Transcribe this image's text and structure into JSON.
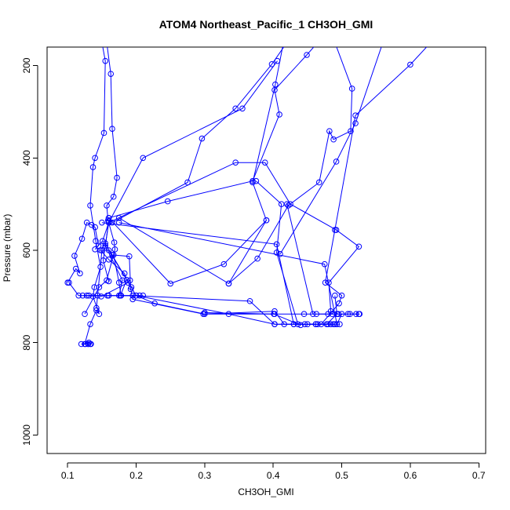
{
  "chart_data": {
    "type": "line",
    "title": "ATOM4 Northeast_Pacific_1 CH3OH_GMI",
    "xlabel": "CH3OH_GMI",
    "ylabel": "Pressure (mbar)",
    "xlim": [
      0.07,
      0.71
    ],
    "ylim": [
      1040,
      160
    ],
    "y_reversed": true,
    "xticks": [
      0.1,
      0.2,
      0.3,
      0.4,
      0.5,
      0.6,
      0.7
    ],
    "xtick_labels": [
      "0.1",
      "0.2",
      "0.3",
      "0.4",
      "0.5",
      "0.6",
      "0.7"
    ],
    "yticks": [
      200,
      400,
      600,
      800,
      1000
    ],
    "ytick_labels": [
      "200",
      "400",
      "600",
      "800",
      "1000"
    ],
    "grid": false,
    "legend": "none",
    "color": "#0000ff",
    "series": [
      {
        "values": [
          {
            "x": 0.1,
            "y": 670
          },
          {
            "x": 0.112,
            "y": 640
          },
          {
            "x": 0.118,
            "y": 650
          },
          {
            "x": 0.11,
            "y": 612
          },
          {
            "x": 0.121,
            "y": 575
          },
          {
            "x": 0.128,
            "y": 540
          },
          {
            "x": 0.135,
            "y": 545
          },
          {
            "x": 0.14,
            "y": 550
          },
          {
            "x": 0.145,
            "y": 590
          },
          {
            "x": 0.14,
            "y": 598
          },
          {
            "x": 0.151,
            "y": 580
          },
          {
            "x": 0.16,
            "y": 540
          },
          {
            "x": 0.21,
            "y": 400
          },
          {
            "x": 0.355,
            "y": 293
          },
          {
            "x": 0.406,
            "y": 190
          }
        ]
      },
      {
        "values": [
          {
            "x": 0.16,
            "y": 530
          },
          {
            "x": 0.246,
            "y": 494
          },
          {
            "x": 0.37,
            "y": 450
          },
          {
            "x": 0.409,
            "y": 306
          },
          {
            "x": 0.402,
            "y": 253
          },
          {
            "x": 0.449,
            "y": 177
          },
          {
            "x": 0.465,
            "y": 150
          }
        ]
      },
      {
        "values": [
          {
            "x": 0.125,
            "y": 738
          },
          {
            "x": 0.146,
            "y": 680
          },
          {
            "x": 0.157,
            "y": 665
          },
          {
            "x": 0.169,
            "y": 598
          },
          {
            "x": 0.168,
            "y": 583
          },
          {
            "x": 0.159,
            "y": 535
          },
          {
            "x": 0.157,
            "y": 503
          },
          {
            "x": 0.167,
            "y": 484
          },
          {
            "x": 0.172,
            "y": 443
          },
          {
            "x": 0.165,
            "y": 337
          },
          {
            "x": 0.163,
            "y": 218
          },
          {
            "x": 0.157,
            "y": 150
          }
        ]
      },
      {
        "values": [
          {
            "x": 0.125,
            "y": 803
          },
          {
            "x": 0.133,
            "y": 760
          },
          {
            "x": 0.142,
            "y": 730
          },
          {
            "x": 0.146,
            "y": 738
          },
          {
            "x": 0.137,
            "y": 700
          },
          {
            "x": 0.139,
            "y": 680
          },
          {
            "x": 0.148,
            "y": 636
          },
          {
            "x": 0.141,
            "y": 580
          },
          {
            "x": 0.133,
            "y": 503
          },
          {
            "x": 0.137,
            "y": 420
          },
          {
            "x": 0.14,
            "y": 400
          },
          {
            "x": 0.153,
            "y": 346
          },
          {
            "x": 0.155,
            "y": 190
          },
          {
            "x": 0.15,
            "y": 150
          }
        ]
      },
      {
        "values": [
          {
            "x": 0.122,
            "y": 698
          },
          {
            "x": 0.2,
            "y": 698
          },
          {
            "x": 0.227,
            "y": 715
          },
          {
            "x": 0.3,
            "y": 738
          },
          {
            "x": 0.402,
            "y": 738
          },
          {
            "x": 0.445,
            "y": 738
          },
          {
            "x": 0.486,
            "y": 738
          },
          {
            "x": 0.525,
            "y": 738
          }
        ]
      },
      {
        "values": [
          {
            "x": 0.158,
            "y": 698
          },
          {
            "x": 0.177,
            "y": 698
          },
          {
            "x": 0.186,
            "y": 664
          },
          {
            "x": 0.183,
            "y": 650
          },
          {
            "x": 0.16,
            "y": 620
          },
          {
            "x": 0.148,
            "y": 600
          },
          {
            "x": 0.155,
            "y": 585
          },
          {
            "x": 0.2,
            "y": 698
          },
          {
            "x": 0.335,
            "y": 738
          },
          {
            "x": 0.402,
            "y": 760
          },
          {
            "x": 0.43,
            "y": 760
          },
          {
            "x": 0.465,
            "y": 760
          },
          {
            "x": 0.49,
            "y": 760
          }
        ]
      },
      {
        "values": [
          {
            "x": 0.165,
            "y": 610
          },
          {
            "x": 0.19,
            "y": 613
          },
          {
            "x": 0.192,
            "y": 684
          },
          {
            "x": 0.195,
            "y": 706
          },
          {
            "x": 0.298,
            "y": 738
          },
          {
            "x": 0.402,
            "y": 732
          },
          {
            "x": 0.416,
            "y": 760
          },
          {
            "x": 0.47,
            "y": 760
          },
          {
            "x": 0.496,
            "y": 715
          },
          {
            "x": 0.5,
            "y": 698
          },
          {
            "x": 0.476,
            "y": 670
          },
          {
            "x": 0.49,
            "y": 556
          },
          {
            "x": 0.52,
            "y": 308
          },
          {
            "x": 0.6,
            "y": 198
          },
          {
            "x": 0.63,
            "y": 150
          }
        ]
      },
      {
        "values": [
          {
            "x": 0.16,
            "y": 530
          },
          {
            "x": 0.25,
            "y": 672
          },
          {
            "x": 0.328,
            "y": 630
          },
          {
            "x": 0.39,
            "y": 535
          },
          {
            "x": 0.37,
            "y": 453
          },
          {
            "x": 0.403,
            "y": 241
          },
          {
            "x": 0.415,
            "y": 150
          }
        ]
      },
      {
        "values": [
          {
            "x": 0.175,
            "y": 530
          },
          {
            "x": 0.335,
            "y": 672
          },
          {
            "x": 0.377,
            "y": 618
          },
          {
            "x": 0.422,
            "y": 503
          },
          {
            "x": 0.467,
            "y": 453
          },
          {
            "x": 0.482,
            "y": 342
          },
          {
            "x": 0.488,
            "y": 360
          },
          {
            "x": 0.513,
            "y": 342
          },
          {
            "x": 0.515,
            "y": 250
          },
          {
            "x": 0.49,
            "y": 150
          }
        ]
      },
      {
        "values": [
          {
            "x": 0.165,
            "y": 540
          },
          {
            "x": 0.275,
            "y": 453
          },
          {
            "x": 0.296,
            "y": 358
          },
          {
            "x": 0.345,
            "y": 293
          },
          {
            "x": 0.398,
            "y": 197
          },
          {
            "x": 0.42,
            "y": 150
          }
        ]
      },
      {
        "values": [
          {
            "x": 0.195,
            "y": 698
          },
          {
            "x": 0.366,
            "y": 710
          },
          {
            "x": 0.402,
            "y": 760
          },
          {
            "x": 0.446,
            "y": 760
          },
          {
            "x": 0.48,
            "y": 760
          }
        ]
      },
      {
        "values": [
          {
            "x": 0.175,
            "y": 698
          },
          {
            "x": 0.18,
            "y": 665
          },
          {
            "x": 0.155,
            "y": 590
          },
          {
            "x": 0.16,
            "y": 540
          },
          {
            "x": 0.345,
            "y": 410
          },
          {
            "x": 0.388,
            "y": 410
          },
          {
            "x": 0.425,
            "y": 500
          },
          {
            "x": 0.492,
            "y": 556
          },
          {
            "x": 0.525,
            "y": 592
          },
          {
            "x": 0.481,
            "y": 670
          },
          {
            "x": 0.484,
            "y": 732
          },
          {
            "x": 0.495,
            "y": 738
          }
        ]
      },
      {
        "values": [
          {
            "x": 0.13,
            "y": 803
          },
          {
            "x": 0.134,
            "y": 803
          },
          {
            "x": 0.131,
            "y": 800
          }
        ]
      },
      {
        "values": [
          {
            "x": 0.15,
            "y": 540
          },
          {
            "x": 0.405,
            "y": 587
          },
          {
            "x": 0.43,
            "y": 760
          },
          {
            "x": 0.488,
            "y": 760
          }
        ]
      },
      {
        "values": [
          {
            "x": 0.175,
            "y": 540
          },
          {
            "x": 0.475,
            "y": 630
          },
          {
            "x": 0.493,
            "y": 760
          },
          {
            "x": 0.5,
            "y": 738
          }
        ]
      },
      {
        "values": [
          {
            "x": 0.128,
            "y": 698
          },
          {
            "x": 0.16,
            "y": 698
          },
          {
            "x": 0.21,
            "y": 698
          }
        ]
      },
      {
        "values": [
          {
            "x": 0.42,
            "y": 500
          },
          {
            "x": 0.458,
            "y": 738
          }
        ]
      },
      {
        "values": [
          {
            "x": 0.41,
            "y": 608
          },
          {
            "x": 0.492,
            "y": 408
          },
          {
            "x": 0.52,
            "y": 325
          },
          {
            "x": 0.56,
            "y": 150
          }
        ]
      },
      {
        "values": [
          {
            "x": 0.39,
            "y": 535
          },
          {
            "x": 0.335,
            "y": 672
          }
        ]
      },
      {
        "values": [
          {
            "x": 0.48,
            "y": 738
          },
          {
            "x": 0.463,
            "y": 738
          },
          {
            "x": 0.493,
            "y": 738
          },
          {
            "x": 0.509,
            "y": 738
          },
          {
            "x": 0.512,
            "y": 738
          },
          {
            "x": 0.521,
            "y": 738
          },
          {
            "x": 0.526,
            "y": 738
          }
        ]
      },
      {
        "values": [
          {
            "x": 0.375,
            "y": 450
          },
          {
            "x": 0.412,
            "y": 500
          },
          {
            "x": 0.405,
            "y": 605
          },
          {
            "x": 0.436,
            "y": 760
          },
          {
            "x": 0.462,
            "y": 760
          },
          {
            "x": 0.484,
            "y": 760
          },
          {
            "x": 0.497,
            "y": 760
          }
        ]
      },
      {
        "values": [
          {
            "x": 0.13,
            "y": 803
          },
          {
            "x": 0.133,
            "y": 803
          },
          {
            "x": 0.126,
            "y": 803
          },
          {
            "x": 0.12,
            "y": 803
          }
        ]
      },
      {
        "values": [
          {
            "x": 0.102,
            "y": 670
          },
          {
            "x": 0.116,
            "y": 698
          },
          {
            "x": 0.131,
            "y": 698
          },
          {
            "x": 0.144,
            "y": 698
          }
        ]
      },
      {
        "values": [
          {
            "x": 0.149,
            "y": 700
          },
          {
            "x": 0.188,
            "y": 670
          },
          {
            "x": 0.191,
            "y": 665
          }
        ]
      },
      {
        "values": [
          {
            "x": 0.167,
            "y": 610
          },
          {
            "x": 0.175,
            "y": 670
          },
          {
            "x": 0.178,
            "y": 698
          },
          {
            "x": 0.205,
            "y": 698
          }
        ]
      },
      {
        "values": [
          {
            "x": 0.142,
            "y": 725
          },
          {
            "x": 0.15,
            "y": 600
          },
          {
            "x": 0.16,
            "y": 600
          },
          {
            "x": 0.193,
            "y": 680
          }
        ]
      },
      {
        "values": [
          {
            "x": 0.16,
            "y": 537
          },
          {
            "x": 0.152,
            "y": 622
          },
          {
            "x": 0.16,
            "y": 667
          }
        ]
      },
      {
        "values": [
          {
            "x": 0.44,
            "y": 762
          },
          {
            "x": 0.401,
            "y": 738
          },
          {
            "x": 0.3,
            "y": 735
          }
        ]
      },
      {
        "values": [
          {
            "x": 0.49,
            "y": 698
          },
          {
            "x": 0.493,
            "y": 738
          },
          {
            "x": 0.478,
            "y": 760
          },
          {
            "x": 0.462,
            "y": 760
          },
          {
            "x": 0.45,
            "y": 760
          }
        ]
      }
    ]
  }
}
